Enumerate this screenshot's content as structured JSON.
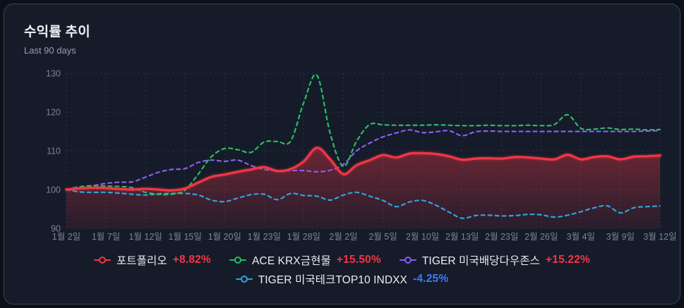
{
  "card": {
    "title": "수익률 추이",
    "subtitle": "Last 90 days"
  },
  "colors": {
    "card_bg": "#151b29",
    "card_border": "#3d4454",
    "grid": "#2c3347",
    "axis_text": "#7c8494",
    "positive_change": "#f23645",
    "negative_change": "#3e7bfa",
    "area_fill_top": "rgba(242,54,69,0.42)",
    "area_fill_bottom": "rgba(242,54,69,0.05)"
  },
  "chart_data": {
    "type": "line",
    "title": "수익률 추이",
    "subtitle": "Last 90 days",
    "xlabel": "",
    "ylabel": "",
    "ylim": [
      90,
      130
    ],
    "y_ticks": [
      90,
      100,
      110,
      120,
      130
    ],
    "y_tick_labels": [
      "90",
      "100",
      "110",
      "120",
      "130"
    ],
    "grid": true,
    "grid_style": "dashed",
    "legend_position": "bottom",
    "x_tick_labels": [
      "1월 2일",
      "1월 7일",
      "1월 12일",
      "1월 15일",
      "1월 20일",
      "1월 23일",
      "1월 28일",
      "2월 2일",
      "2월 5일",
      "2월 10일",
      "2월 13일",
      "2월 23일",
      "2월 26일",
      "3월 4일",
      "3월 9일",
      "3월 12일"
    ],
    "points_per_tick_interval": 3,
    "series": [
      {
        "id": "portfolio",
        "name": "포트폴리오",
        "change": "+8.82%",
        "change_color": "#f23645",
        "color": "#f23645",
        "style": "solid",
        "area": true,
        "values": [
          100,
          100.3,
          100.45,
          100.4,
          100.15,
          100.0,
          100.2,
          100.0,
          99.8,
          100.3,
          101.8,
          103.3,
          103.9,
          104.6,
          105.2,
          105.8,
          104.8,
          105.3,
          107.3,
          110.8,
          107.8,
          104.0,
          106.3,
          107.6,
          108.9,
          108.3,
          109.3,
          109.4,
          109.2,
          108.6,
          107.7,
          108.0,
          108.1,
          108.0,
          108.4,
          108.3,
          108.0,
          107.8,
          109.0,
          107.8,
          108.4,
          108.6,
          107.8,
          108.5,
          108.6,
          108.8
        ]
      },
      {
        "id": "ace-krx-gold",
        "name": "ACE KRX금현물",
        "change": "+15.50%",
        "change_color": "#f23645",
        "color": "#2abd62",
        "style": "dashed",
        "area": false,
        "values": [
          100,
          100.7,
          101.0,
          100.9,
          100.8,
          100.5,
          99.3,
          98.8,
          98.8,
          99.9,
          104.0,
          108.5,
          110.6,
          110.3,
          109.6,
          112.3,
          112.4,
          112.5,
          122.5,
          129.5,
          114.5,
          106.0,
          112.5,
          116.8,
          116.7,
          116.6,
          116.6,
          116.6,
          116.7,
          116.6,
          116.5,
          116.5,
          116.6,
          116.5,
          116.5,
          116.6,
          116.5,
          116.8,
          119.3,
          115.8,
          115.6,
          115.9,
          115.5,
          115.6,
          115.4,
          115.5
        ]
      },
      {
        "id": "tiger-us-dividend-dow",
        "name": "TIGER 미국배당다우존스",
        "change": "+15.22%",
        "change_color": "#f23645",
        "color": "#8b5cf6",
        "style": "dashed",
        "area": false,
        "values": [
          100,
          100.4,
          101.0,
          101.6,
          101.9,
          102.0,
          103.2,
          104.5,
          105.2,
          105.4,
          107.0,
          107.6,
          107.3,
          107.6,
          106.2,
          105.2,
          104.9,
          104.9,
          104.9,
          104.6,
          105.0,
          106.5,
          110.0,
          112.0,
          113.6,
          114.6,
          115.4,
          114.7,
          114.9,
          115.2,
          113.9,
          114.9,
          115.1,
          115.0,
          115.0,
          115.0,
          115.0,
          115.0,
          115.0,
          115.0,
          115.0,
          115.0,
          115.0,
          115.0,
          115.1,
          115.2
        ]
      },
      {
        "id": "tiger-us-tech-top10",
        "name": "TIGER 미국테크TOP10 INDXX",
        "change": "-4.25%",
        "change_color": "#3e7bfa",
        "color": "#2fa3dd",
        "style": "dashed",
        "area": false,
        "values": [
          100,
          99.4,
          99.3,
          99.3,
          99.1,
          98.8,
          98.6,
          98.9,
          99.0,
          99.0,
          98.6,
          97.3,
          96.9,
          97.8,
          98.7,
          98.8,
          97.4,
          99.0,
          98.5,
          98.3,
          97.3,
          98.6,
          99.3,
          98.3,
          97.2,
          95.6,
          96.8,
          97.2,
          96.0,
          94.2,
          92.6,
          93.3,
          93.4,
          93.2,
          93.3,
          93.6,
          93.5,
          92.9,
          93.4,
          94.3,
          95.3,
          95.8,
          94.0,
          95.3,
          95.6,
          95.75
        ]
      }
    ],
    "legend_rows": [
      [
        0,
        1,
        2
      ],
      [
        3
      ]
    ]
  }
}
